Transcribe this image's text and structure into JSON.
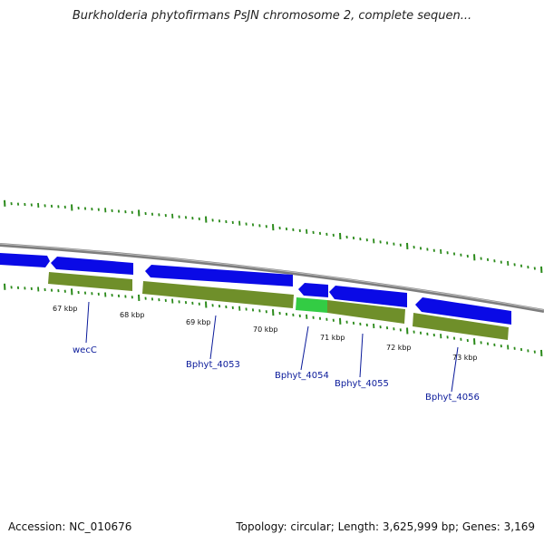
{
  "title": "Burkholderia phytofirmans PsJN chromosome 2, complete sequen...",
  "footer": {
    "accession": "Accession: NC_010676",
    "summary": "Topology: circular; Length: 3,625,999 bp; Genes: 3,169"
  },
  "colors": {
    "backbone": "#8a8a8a",
    "gene_blue": "#0a0ae6",
    "cds_olive": "#6f8f2a",
    "highlight_green": "#33cc44",
    "tick_green": "#2a8a1a",
    "label_blue": "#0a1a9a"
  },
  "ticks": [
    "67 kbp",
    "68 kbp",
    "69 kbp",
    "70 kbp",
    "71 kbp",
    "72 kbp",
    "73 kbp"
  ],
  "genes": [
    "wecC",
    "Bphyt_4053",
    "Bphyt_4054",
    "Bphyt_4055",
    "Bphyt_4056"
  ]
}
